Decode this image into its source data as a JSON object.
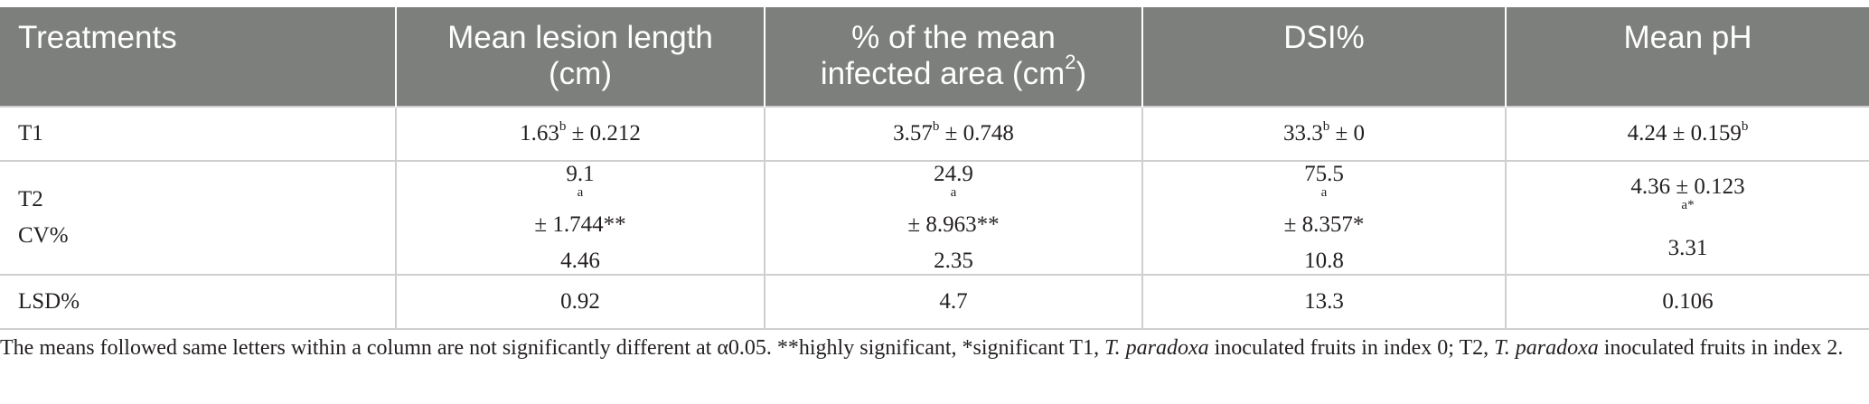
{
  "header": {
    "col0": "Treatments",
    "col1_line1": "Mean lesion length",
    "col1_line2": "(cm)",
    "col2_line1": "% of the mean",
    "col2_line2": "infected area (cm",
    "col2_sup": "2",
    "col2_close": ")",
    "col3": "DSI%",
    "col4": "Mean pH"
  },
  "rows": {
    "t1": {
      "label": "T1",
      "lesion_value": "1.63",
      "lesion_sup": "b",
      "lesion_rest": " ± 0.212",
      "area_value": "3.57",
      "area_sup": "b",
      "area_rest": " ± 0.748",
      "dsi_value": "33.3",
      "dsi_sup": "b",
      "dsi_rest": " ± 0",
      "ph_value": "4.24 ± 0.159",
      "ph_sup": "b"
    },
    "t2": {
      "label": "T2",
      "lesion_value": "9.1",
      "lesion_sup": "a",
      "lesion_rest": " ± 1.744**",
      "area_value": "24.9",
      "area_sup": "a",
      "area_rest": " ± 8.963**",
      "dsi_value": "75.5",
      "dsi_sup": "a",
      "dsi_rest": " ± 8.357*",
      "ph_value": "4.36 ± 0.123",
      "ph_sup": "a*"
    },
    "cv": {
      "label": "CV%",
      "lesion": "4.46",
      "area": "2.35",
      "dsi": "10.8",
      "ph": "3.31"
    },
    "lsd": {
      "label": "LSD%",
      "lesion": "0.92",
      "area": "4.7",
      "dsi": "13.3",
      "ph": "0.106"
    }
  },
  "footnote": {
    "part1": "The means followed same letters within a column are not significantly different at α0.05. **highly significant, *significant T1, ",
    "species1": "T. paradoxa",
    "part2": " inoculated fruits in index 0; T2, ",
    "species2": "T. paradoxa",
    "part3": " inoculated fruits in index 2."
  }
}
